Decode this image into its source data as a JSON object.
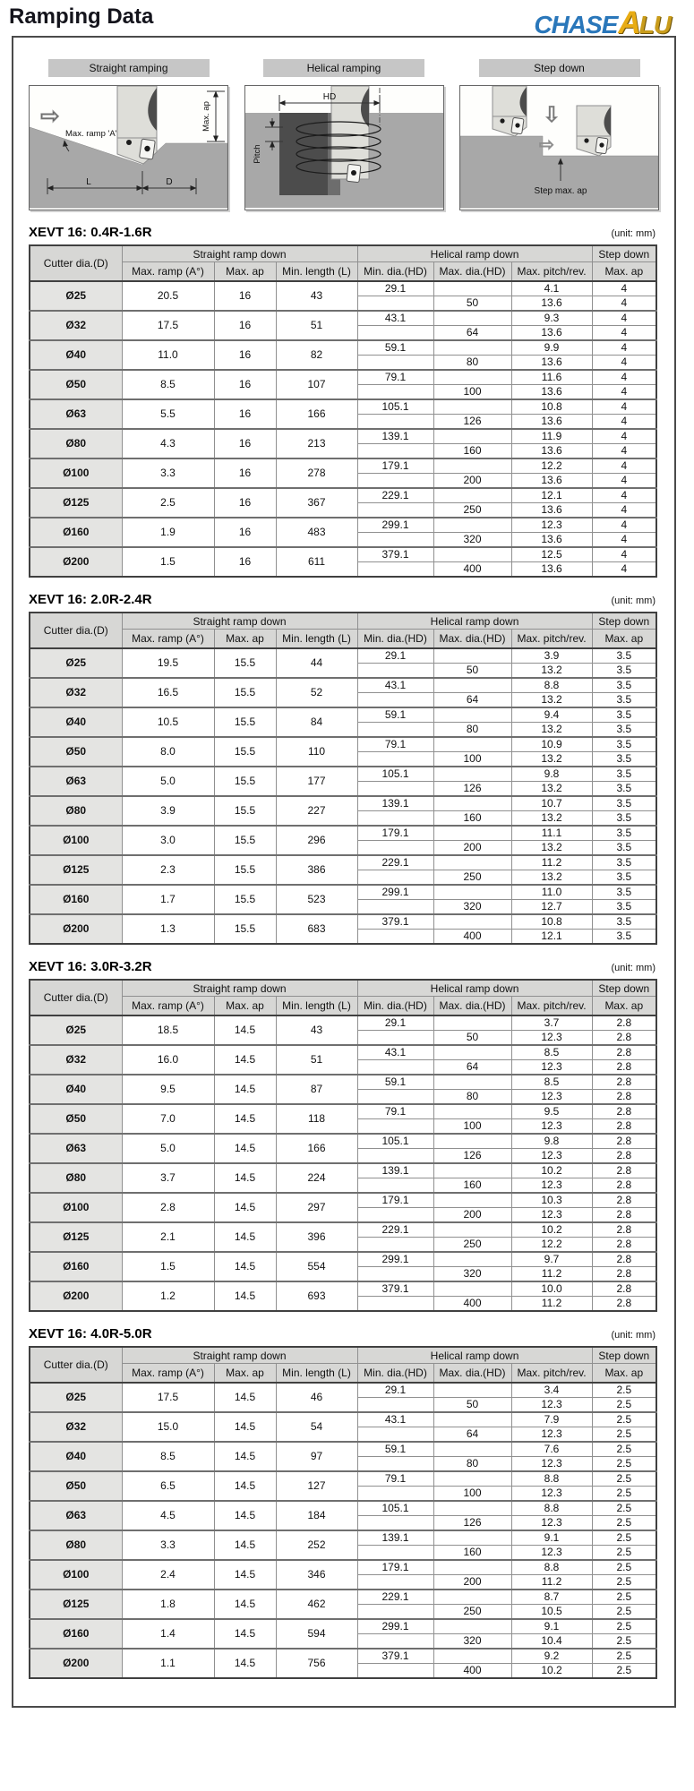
{
  "page": {
    "title": "Ramping Data",
    "logo": {
      "chase": "CHASE",
      "a": "A",
      "lu": "LU"
    },
    "unit_label": "(unit: mm)"
  },
  "illustrations": {
    "icons": {
      "right_arrow": "⇨",
      "down_arrow": "⇩"
    },
    "straight": {
      "title": "Straight ramping",
      "ramp_label": "Max. ramp 'A'",
      "l_label": "L",
      "d_label": "D",
      "ap_label": "Max. ap"
    },
    "helical": {
      "title": "Helical ramping",
      "hd_label": "HD",
      "pitch_label": "Pitch"
    },
    "step": {
      "title": "Step down",
      "ap_label": "Step max. ap"
    }
  },
  "table_headers": {
    "cutter": "Cutter dia.(D)",
    "straight_group": "Straight ramp down",
    "helical_group": "Helical ramp down",
    "step_group": "Step down",
    "max_ramp": "Max. ramp (A°)",
    "max_ap": "Max. ap",
    "min_length": "Min. length (L)",
    "min_dia": "Min. dia.(HD)",
    "max_dia": "Max. dia.(HD)",
    "max_pitch": "Max. pitch/rev.",
    "step_max_ap": "Max. ap"
  },
  "tables": [
    {
      "title": "XEVT 16: 0.4R-1.6R",
      "rows": [
        {
          "dia": "Ø25",
          "max_ramp": "20.5",
          "max_ap": "16",
          "min_length": "43",
          "min_dia_hd": "29.1",
          "max_dia_hd": "50",
          "pitch_upper": "4.1",
          "pitch_lower": "13.6",
          "step_ap_upper": "4",
          "step_ap_lower": "4"
        },
        {
          "dia": "Ø32",
          "max_ramp": "17.5",
          "max_ap": "16",
          "min_length": "51",
          "min_dia_hd": "43.1",
          "max_dia_hd": "64",
          "pitch_upper": "9.3",
          "pitch_lower": "13.6",
          "step_ap_upper": "4",
          "step_ap_lower": "4"
        },
        {
          "dia": "Ø40",
          "max_ramp": "11.0",
          "max_ap": "16",
          "min_length": "82",
          "min_dia_hd": "59.1",
          "max_dia_hd": "80",
          "pitch_upper": "9.9",
          "pitch_lower": "13.6",
          "step_ap_upper": "4",
          "step_ap_lower": "4"
        },
        {
          "dia": "Ø50",
          "max_ramp": "8.5",
          "max_ap": "16",
          "min_length": "107",
          "min_dia_hd": "79.1",
          "max_dia_hd": "100",
          "pitch_upper": "11.6",
          "pitch_lower": "13.6",
          "step_ap_upper": "4",
          "step_ap_lower": "4"
        },
        {
          "dia": "Ø63",
          "max_ramp": "5.5",
          "max_ap": "16",
          "min_length": "166",
          "min_dia_hd": "105.1",
          "max_dia_hd": "126",
          "pitch_upper": "10.8",
          "pitch_lower": "13.6",
          "step_ap_upper": "4",
          "step_ap_lower": "4"
        },
        {
          "dia": "Ø80",
          "max_ramp": "4.3",
          "max_ap": "16",
          "min_length": "213",
          "min_dia_hd": "139.1",
          "max_dia_hd": "160",
          "pitch_upper": "11.9",
          "pitch_lower": "13.6",
          "step_ap_upper": "4",
          "step_ap_lower": "4"
        },
        {
          "dia": "Ø100",
          "max_ramp": "3.3",
          "max_ap": "16",
          "min_length": "278",
          "min_dia_hd": "179.1",
          "max_dia_hd": "200",
          "pitch_upper": "12.2",
          "pitch_lower": "13.6",
          "step_ap_upper": "4",
          "step_ap_lower": "4"
        },
        {
          "dia": "Ø125",
          "max_ramp": "2.5",
          "max_ap": "16",
          "min_length": "367",
          "min_dia_hd": "229.1",
          "max_dia_hd": "250",
          "pitch_upper": "12.1",
          "pitch_lower": "13.6",
          "step_ap_upper": "4",
          "step_ap_lower": "4"
        },
        {
          "dia": "Ø160",
          "max_ramp": "1.9",
          "max_ap": "16",
          "min_length": "483",
          "min_dia_hd": "299.1",
          "max_dia_hd": "320",
          "pitch_upper": "12.3",
          "pitch_lower": "13.6",
          "step_ap_upper": "4",
          "step_ap_lower": "4"
        },
        {
          "dia": "Ø200",
          "max_ramp": "1.5",
          "max_ap": "16",
          "min_length": "611",
          "min_dia_hd": "379.1",
          "max_dia_hd": "400",
          "pitch_upper": "12.5",
          "pitch_lower": "13.6",
          "step_ap_upper": "4",
          "step_ap_lower": "4"
        }
      ]
    },
    {
      "title": "XEVT 16: 2.0R-2.4R",
      "rows": [
        {
          "dia": "Ø25",
          "max_ramp": "19.5",
          "max_ap": "15.5",
          "min_length": "44",
          "min_dia_hd": "29.1",
          "max_dia_hd": "50",
          "pitch_upper": "3.9",
          "pitch_lower": "13.2",
          "step_ap_upper": "3.5",
          "step_ap_lower": "3.5"
        },
        {
          "dia": "Ø32",
          "max_ramp": "16.5",
          "max_ap": "15.5",
          "min_length": "52",
          "min_dia_hd": "43.1",
          "max_dia_hd": "64",
          "pitch_upper": "8.8",
          "pitch_lower": "13.2",
          "step_ap_upper": "3.5",
          "step_ap_lower": "3.5"
        },
        {
          "dia": "Ø40",
          "max_ramp": "10.5",
          "max_ap": "15.5",
          "min_length": "84",
          "min_dia_hd": "59.1",
          "max_dia_hd": "80",
          "pitch_upper": "9.4",
          "pitch_lower": "13.2",
          "step_ap_upper": "3.5",
          "step_ap_lower": "3.5"
        },
        {
          "dia": "Ø50",
          "max_ramp": "8.0",
          "max_ap": "15.5",
          "min_length": "110",
          "min_dia_hd": "79.1",
          "max_dia_hd": "100",
          "pitch_upper": "10.9",
          "pitch_lower": "13.2",
          "step_ap_upper": "3.5",
          "step_ap_lower": "3.5"
        },
        {
          "dia": "Ø63",
          "max_ramp": "5.0",
          "max_ap": "15.5",
          "min_length": "177",
          "min_dia_hd": "105.1",
          "max_dia_hd": "126",
          "pitch_upper": "9.8",
          "pitch_lower": "13.2",
          "step_ap_upper": "3.5",
          "step_ap_lower": "3.5"
        },
        {
          "dia": "Ø80",
          "max_ramp": "3.9",
          "max_ap": "15.5",
          "min_length": "227",
          "min_dia_hd": "139.1",
          "max_dia_hd": "160",
          "pitch_upper": "10.7",
          "pitch_lower": "13.2",
          "step_ap_upper": "3.5",
          "step_ap_lower": "3.5"
        },
        {
          "dia": "Ø100",
          "max_ramp": "3.0",
          "max_ap": "15.5",
          "min_length": "296",
          "min_dia_hd": "179.1",
          "max_dia_hd": "200",
          "pitch_upper": "11.1",
          "pitch_lower": "13.2",
          "step_ap_upper": "3.5",
          "step_ap_lower": "3.5"
        },
        {
          "dia": "Ø125",
          "max_ramp": "2.3",
          "max_ap": "15.5",
          "min_length": "386",
          "min_dia_hd": "229.1",
          "max_dia_hd": "250",
          "pitch_upper": "11.2",
          "pitch_lower": "13.2",
          "step_ap_upper": "3.5",
          "step_ap_lower": "3.5"
        },
        {
          "dia": "Ø160",
          "max_ramp": "1.7",
          "max_ap": "15.5",
          "min_length": "523",
          "min_dia_hd": "299.1",
          "max_dia_hd": "320",
          "pitch_upper": "11.0",
          "pitch_lower": "12.7",
          "step_ap_upper": "3.5",
          "step_ap_lower": "3.5"
        },
        {
          "dia": "Ø200",
          "max_ramp": "1.3",
          "max_ap": "15.5",
          "min_length": "683",
          "min_dia_hd": "379.1",
          "max_dia_hd": "400",
          "pitch_upper": "10.8",
          "pitch_lower": "12.1",
          "step_ap_upper": "3.5",
          "step_ap_lower": "3.5"
        }
      ]
    },
    {
      "title": "XEVT 16: 3.0R-3.2R",
      "rows": [
        {
          "dia": "Ø25",
          "max_ramp": "18.5",
          "max_ap": "14.5",
          "min_length": "43",
          "min_dia_hd": "29.1",
          "max_dia_hd": "50",
          "pitch_upper": "3.7",
          "pitch_lower": "12.3",
          "step_ap_upper": "2.8",
          "step_ap_lower": "2.8"
        },
        {
          "dia": "Ø32",
          "max_ramp": "16.0",
          "max_ap": "14.5",
          "min_length": "51",
          "min_dia_hd": "43.1",
          "max_dia_hd": "64",
          "pitch_upper": "8.5",
          "pitch_lower": "12.3",
          "step_ap_upper": "2.8",
          "step_ap_lower": "2.8"
        },
        {
          "dia": "Ø40",
          "max_ramp": "9.5",
          "max_ap": "14.5",
          "min_length": "87",
          "min_dia_hd": "59.1",
          "max_dia_hd": "80",
          "pitch_upper": "8.5",
          "pitch_lower": "12.3",
          "step_ap_upper": "2.8",
          "step_ap_lower": "2.8"
        },
        {
          "dia": "Ø50",
          "max_ramp": "7.0",
          "max_ap": "14.5",
          "min_length": "118",
          "min_dia_hd": "79.1",
          "max_dia_hd": "100",
          "pitch_upper": "9.5",
          "pitch_lower": "12.3",
          "step_ap_upper": "2.8",
          "step_ap_lower": "2.8"
        },
        {
          "dia": "Ø63",
          "max_ramp": "5.0",
          "max_ap": "14.5",
          "min_length": "166",
          "min_dia_hd": "105.1",
          "max_dia_hd": "126",
          "pitch_upper": "9.8",
          "pitch_lower": "12.3",
          "step_ap_upper": "2.8",
          "step_ap_lower": "2.8"
        },
        {
          "dia": "Ø80",
          "max_ramp": "3.7",
          "max_ap": "14.5",
          "min_length": "224",
          "min_dia_hd": "139.1",
          "max_dia_hd": "160",
          "pitch_upper": "10.2",
          "pitch_lower": "12.3",
          "step_ap_upper": "2.8",
          "step_ap_lower": "2.8"
        },
        {
          "dia": "Ø100",
          "max_ramp": "2.8",
          "max_ap": "14.5",
          "min_length": "297",
          "min_dia_hd": "179.1",
          "max_dia_hd": "200",
          "pitch_upper": "10.3",
          "pitch_lower": "12.3",
          "step_ap_upper": "2.8",
          "step_ap_lower": "2.8"
        },
        {
          "dia": "Ø125",
          "max_ramp": "2.1",
          "max_ap": "14.5",
          "min_length": "396",
          "min_dia_hd": "229.1",
          "max_dia_hd": "250",
          "pitch_upper": "10.2",
          "pitch_lower": "12.2",
          "step_ap_upper": "2.8",
          "step_ap_lower": "2.8"
        },
        {
          "dia": "Ø160",
          "max_ramp": "1.5",
          "max_ap": "14.5",
          "min_length": "554",
          "min_dia_hd": "299.1",
          "max_dia_hd": "320",
          "pitch_upper": "9.7",
          "pitch_lower": "11.2",
          "step_ap_upper": "2.8",
          "step_ap_lower": "2.8"
        },
        {
          "dia": "Ø200",
          "max_ramp": "1.2",
          "max_ap": "14.5",
          "min_length": "693",
          "min_dia_hd": "379.1",
          "max_dia_hd": "400",
          "pitch_upper": "10.0",
          "pitch_lower": "11.2",
          "step_ap_upper": "2.8",
          "step_ap_lower": "2.8"
        }
      ]
    },
    {
      "title": "XEVT 16: 4.0R-5.0R",
      "rows": [
        {
          "dia": "Ø25",
          "max_ramp": "17.5",
          "max_ap": "14.5",
          "min_length": "46",
          "min_dia_hd": "29.1",
          "max_dia_hd": "50",
          "pitch_upper": "3.4",
          "pitch_lower": "12.3",
          "step_ap_upper": "2.5",
          "step_ap_lower": "2.5"
        },
        {
          "dia": "Ø32",
          "max_ramp": "15.0",
          "max_ap": "14.5",
          "min_length": "54",
          "min_dia_hd": "43.1",
          "max_dia_hd": "64",
          "pitch_upper": "7.9",
          "pitch_lower": "12.3",
          "step_ap_upper": "2.5",
          "step_ap_lower": "2.5"
        },
        {
          "dia": "Ø40",
          "max_ramp": "8.5",
          "max_ap": "14.5",
          "min_length": "97",
          "min_dia_hd": "59.1",
          "max_dia_hd": "80",
          "pitch_upper": "7.6",
          "pitch_lower": "12.3",
          "step_ap_upper": "2.5",
          "step_ap_lower": "2.5"
        },
        {
          "dia": "Ø50",
          "max_ramp": "6.5",
          "max_ap": "14.5",
          "min_length": "127",
          "min_dia_hd": "79.1",
          "max_dia_hd": "100",
          "pitch_upper": "8.8",
          "pitch_lower": "12.3",
          "step_ap_upper": "2.5",
          "step_ap_lower": "2.5"
        },
        {
          "dia": "Ø63",
          "max_ramp": "4.5",
          "max_ap": "14.5",
          "min_length": "184",
          "min_dia_hd": "105.1",
          "max_dia_hd": "126",
          "pitch_upper": "8.8",
          "pitch_lower": "12.3",
          "step_ap_upper": "2.5",
          "step_ap_lower": "2.5"
        },
        {
          "dia": "Ø80",
          "max_ramp": "3.3",
          "max_ap": "14.5",
          "min_length": "252",
          "min_dia_hd": "139.1",
          "max_dia_hd": "160",
          "pitch_upper": "9.1",
          "pitch_lower": "12.3",
          "step_ap_upper": "2.5",
          "step_ap_lower": "2.5"
        },
        {
          "dia": "Ø100",
          "max_ramp": "2.4",
          "max_ap": "14.5",
          "min_length": "346",
          "min_dia_hd": "179.1",
          "max_dia_hd": "200",
          "pitch_upper": "8.8",
          "pitch_lower": "11.2",
          "step_ap_upper": "2.5",
          "step_ap_lower": "2.5"
        },
        {
          "dia": "Ø125",
          "max_ramp": "1.8",
          "max_ap": "14.5",
          "min_length": "462",
          "min_dia_hd": "229.1",
          "max_dia_hd": "250",
          "pitch_upper": "8.7",
          "pitch_lower": "10.5",
          "step_ap_upper": "2.5",
          "step_ap_lower": "2.5"
        },
        {
          "dia": "Ø160",
          "max_ramp": "1.4",
          "max_ap": "14.5",
          "min_length": "594",
          "min_dia_hd": "299.1",
          "max_dia_hd": "320",
          "pitch_upper": "9.1",
          "pitch_lower": "10.4",
          "step_ap_upper": "2.5",
          "step_ap_lower": "2.5"
        },
        {
          "dia": "Ø200",
          "max_ramp": "1.1",
          "max_ap": "14.5",
          "min_length": "756",
          "min_dia_hd": "379.1",
          "max_dia_hd": "400",
          "pitch_upper": "9.2",
          "pitch_lower": "10.2",
          "step_ap_upper": "2.5",
          "step_ap_lower": "2.5"
        }
      ]
    }
  ]
}
